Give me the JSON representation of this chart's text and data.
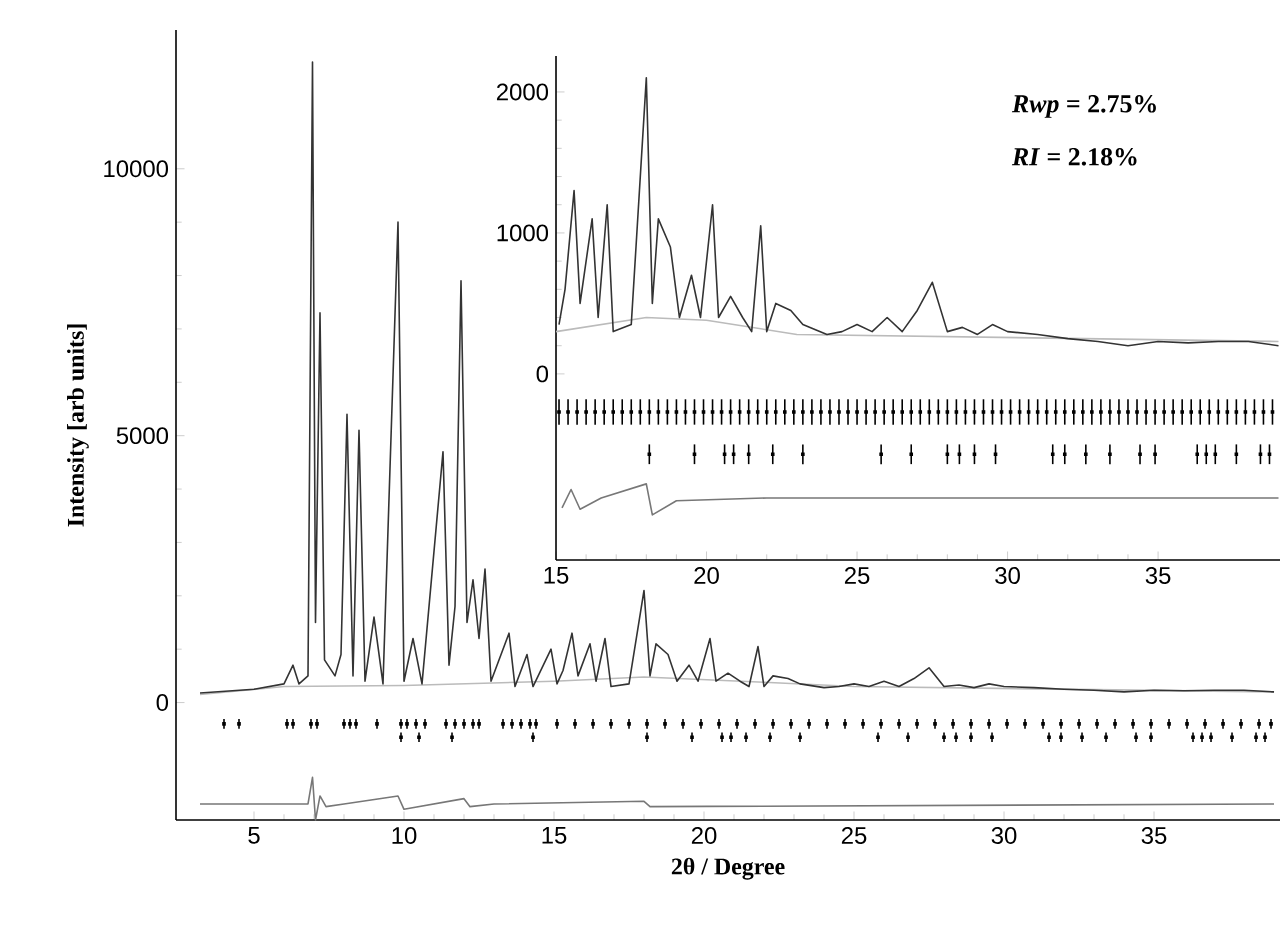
{
  "chart_data": [
    {
      "type": "line",
      "xlabel": "2θ / Degree",
      "ylabel": "Intensity [arb units]",
      "xlim": [
        2.4,
        39.2
      ],
      "ylim": [
        -2200,
        12600
      ],
      "xticks": [
        5,
        10,
        15,
        20,
        25,
        30,
        35
      ],
      "yticks": [
        0,
        5000,
        10000
      ],
      "series": [
        {
          "color": "#bbbbbb",
          "x": [
            3.2,
            6,
            10,
            15,
            18,
            22,
            25,
            39
          ],
          "values": [
            150,
            300,
            320,
            400,
            480,
            380,
            300,
            200
          ]
        },
        {
          "color": "#333333",
          "x": [
            3.2,
            5,
            6,
            6.3,
            6.5,
            6.8,
            6.95,
            7.05,
            7.2,
            7.35,
            7.7,
            7.9,
            8.1,
            8.3,
            8.5,
            8.7,
            9.0,
            9.3,
            9.8,
            10.0,
            10.3,
            10.6,
            11.3,
            11.5,
            11.7,
            11.9,
            12.1,
            12.3,
            12.5,
            12.7,
            12.9,
            13.5,
            13.7,
            14.1,
            14.3,
            14.9,
            15.1,
            15.3,
            15.6,
            15.8,
            16.2,
            16.4,
            16.7,
            16.9,
            17.5,
            18.0,
            18.2,
            18.4,
            18.8,
            19.1,
            19.5,
            19.8,
            20.2,
            20.4,
            20.8,
            21.2,
            21.5,
            21.8,
            22.0,
            22.3,
            22.8,
            23.2,
            24.0,
            24.5,
            25.0,
            25.5,
            26.0,
            26.5,
            27.0,
            27.5,
            28.0,
            28.5,
            29.0,
            29.5,
            30.0,
            31.0,
            32.0,
            33.0,
            34.0,
            35.0,
            36.0,
            37.0,
            38.0,
            39.0
          ],
          "values": [
            180,
            250,
            350,
            700,
            350,
            500,
            12000,
            1500,
            7300,
            800,
            500,
            900,
            5400,
            500,
            5100,
            400,
            1600,
            350,
            9000,
            400,
            1200,
            350,
            4700,
            700,
            1800,
            7900,
            1500,
            2300,
            1200,
            2500,
            400,
            1300,
            300,
            900,
            300,
            1000,
            350,
            600,
            1300,
            500,
            1100,
            400,
            1200,
            300,
            350,
            2100,
            500,
            1100,
            900,
            400,
            700,
            400,
            1200,
            400,
            550,
            400,
            300,
            1050,
            300,
            500,
            450,
            350,
            280,
            300,
            350,
            300,
            400,
            300,
            450,
            650,
            300,
            330,
            280,
            350,
            300,
            280,
            250,
            230,
            200,
            230,
            220,
            230,
            230,
            200
          ]
        },
        {
          "type": "scatter",
          "marker": "square",
          "color": "#000000",
          "x": [
            4.0,
            4.5,
            6.1,
            6.3,
            6.9,
            7.1,
            8.0,
            8.2,
            8.4,
            9.1,
            9.9,
            10.1,
            10.4,
            10.7,
            11.4,
            11.7,
            12.0,
            12.3,
            12.5,
            13.3,
            13.6,
            13.9,
            14.2,
            14.4,
            15.1,
            15.7,
            16.3,
            16.9,
            17.5,
            18.1,
            18.7,
            19.3,
            19.9,
            20.5,
            21.1,
            21.7,
            22.3,
            22.9,
            23.5,
            24.1,
            24.7,
            25.3,
            25.9,
            26.5,
            27.1,
            27.7,
            28.3,
            28.9,
            29.5,
            30.1,
            30.7,
            31.3,
            31.9,
            32.5,
            33.1,
            33.7,
            34.3,
            34.9,
            35.5,
            36.1,
            36.7,
            37.3,
            37.9,
            38.5,
            38.9
          ],
          "values": [
            -400,
            -400,
            -400,
            -400,
            -400,
            -400,
            -400,
            -400,
            -400,
            -400,
            -400,
            -400,
            -400,
            -400,
            -400,
            -400,
            -400,
            -400,
            -400,
            -400,
            -400,
            -400,
            -400,
            -400,
            -400,
            -400,
            -400,
            -400,
            -400,
            -400,
            -400,
            -400,
            -400,
            -400,
            -400,
            -400,
            -400,
            -400,
            -400,
            -400,
            -400,
            -400,
            -400,
            -400,
            -400,
            -400,
            -400,
            -400,
            -400,
            -400,
            -400,
            -400,
            -400,
            -400,
            -400,
            -400,
            -400,
            -400,
            -400,
            -400,
            -400,
            -400,
            -400,
            -400,
            -400
          ],
          "errors": [
            90,
            90,
            90,
            90,
            90,
            90,
            90,
            90,
            90,
            90,
            90,
            90,
            90,
            90,
            90,
            90,
            90,
            90,
            90,
            90,
            90,
            90,
            90,
            90,
            90,
            90,
            90,
            90,
            90,
            90,
            90,
            90,
            90,
            90,
            90,
            90,
            90,
            90,
            90,
            90,
            90,
            90,
            90,
            90,
            90,
            90,
            90,
            90,
            90,
            90,
            90,
            90,
            90,
            90,
            90,
            90,
            90,
            90,
            90,
            90,
            90,
            90,
            90,
            90,
            90
          ]
        },
        {
          "type": "scatter",
          "marker": "square",
          "color": "#000000",
          "x": [
            9.9,
            10.5,
            11.6,
            14.3,
            18.1,
            19.6,
            20.6,
            20.9,
            21.4,
            22.2,
            23.2,
            25.8,
            26.8,
            28.0,
            28.4,
            28.9,
            29.6,
            31.5,
            31.9,
            32.6,
            33.4,
            34.4,
            34.9,
            36.3,
            36.6,
            36.9,
            37.6,
            38.4,
            38.7
          ],
          "values": [
            -650,
            -650,
            -650,
            -650,
            -650,
            -650,
            -650,
            -650,
            -650,
            -650,
            -650,
            -650,
            -650,
            -650,
            -650,
            -650,
            -650,
            -650,
            -650,
            -650,
            -650,
            -650,
            -650,
            -650,
            -650,
            -650,
            -650,
            -650,
            -650
          ],
          "errors": [
            90,
            90,
            90,
            90,
            90,
            90,
            90,
            90,
            90,
            90,
            90,
            90,
            90,
            90,
            90,
            90,
            90,
            90,
            90,
            90,
            90,
            90,
            90,
            90,
            90,
            90,
            90,
            90,
            90
          ]
        },
        {
          "color": "#777777",
          "x": [
            3.2,
            6.8,
            6.95,
            7.05,
            7.2,
            7.4,
            8.0,
            9.8,
            10.0,
            12.0,
            12.2,
            13.0,
            18.0,
            18.2,
            39.0
          ],
          "values": [
            -1900,
            -1900,
            -1400,
            -2200,
            -1750,
            -1950,
            -1900,
            -1750,
            -2000,
            -1800,
            -1950,
            -1900,
            -1850,
            -1950,
            -1900
          ]
        }
      ]
    },
    {
      "type": "line",
      "annotations": [
        "*Rwp* = 2.75%",
        "*RI*    = 2.18%"
      ],
      "xlim": [
        15,
        39.05
      ],
      "ylim": [
        -1320,
        2255
      ],
      "xticks": [
        15,
        20,
        25,
        30,
        35
      ],
      "yticks": [
        0,
        1000,
        2000
      ],
      "series": [
        {
          "color": "#bbbbbb",
          "x": [
            15,
            18,
            20,
            23,
            39
          ],
          "values": [
            300,
            400,
            380,
            280,
            230
          ]
        },
        {
          "color": "#333333",
          "x": [
            15.1,
            15.3,
            15.6,
            15.8,
            16.2,
            16.4,
            16.7,
            16.9,
            17.5,
            18.0,
            18.2,
            18.4,
            18.8,
            19.1,
            19.5,
            19.8,
            20.2,
            20.4,
            20.8,
            21.2,
            21.5,
            21.8,
            22.0,
            22.3,
            22.8,
            23.2,
            24.0,
            24.5,
            25.0,
            25.5,
            26.0,
            26.5,
            27.0,
            27.5,
            28.0,
            28.5,
            29.0,
            29.5,
            30.0,
            31.0,
            32.0,
            33.0,
            34.0,
            35.0,
            36.0,
            37.0,
            38.0,
            39.0
          ],
          "values": [
            350,
            600,
            1300,
            500,
            1100,
            400,
            1200,
            300,
            350,
            2100,
            500,
            1100,
            900,
            400,
            700,
            400,
            1200,
            400,
            550,
            400,
            300,
            1050,
            300,
            500,
            450,
            350,
            280,
            300,
            350,
            300,
            400,
            300,
            450,
            650,
            300,
            330,
            280,
            350,
            300,
            280,
            250,
            230,
            200,
            230,
            220,
            230,
            230,
            200
          ]
        },
        {
          "type": "scatter",
          "marker": "square",
          "color": "#000000",
          "x": [
            15.1,
            15.4,
            15.7,
            16.0,
            16.3,
            16.6,
            16.9,
            17.2,
            17.5,
            17.8,
            18.1,
            18.4,
            18.7,
            19.0,
            19.3,
            19.6,
            19.9,
            20.2,
            20.5,
            20.8,
            21.1,
            21.4,
            21.7,
            22.0,
            22.3,
            22.6,
            22.9,
            23.2,
            23.5,
            23.8,
            24.1,
            24.4,
            24.7,
            25.0,
            25.3,
            25.6,
            25.9,
            26.2,
            26.5,
            26.8,
            27.1,
            27.4,
            27.7,
            28.0,
            28.3,
            28.6,
            28.9,
            29.2,
            29.5,
            29.8,
            30.1,
            30.4,
            30.7,
            31.0,
            31.3,
            31.6,
            31.9,
            32.2,
            32.5,
            32.8,
            33.1,
            33.4,
            33.7,
            34.0,
            34.3,
            34.6,
            34.9,
            35.2,
            35.5,
            35.8,
            36.1,
            36.4,
            36.7,
            37.0,
            37.3,
            37.6,
            37.9,
            38.2,
            38.5,
            38.8
          ],
          "values": [
            -270,
            -270,
            -270,
            -270,
            -270,
            -270,
            -270,
            -270,
            -270,
            -270,
            -270,
            -270,
            -270,
            -270,
            -270,
            -270,
            -270,
            -270,
            -270,
            -270,
            -270,
            -270,
            -270,
            -270,
            -270,
            -270,
            -270,
            -270,
            -270,
            -270,
            -270,
            -270,
            -270,
            -270,
            -270,
            -270,
            -270,
            -270,
            -270,
            -270,
            -270,
            -270,
            -270,
            -270,
            -270,
            -270,
            -270,
            -270,
            -270,
            -270,
            -270,
            -270,
            -270,
            -270,
            -270,
            -270,
            -270,
            -270,
            -270,
            -270,
            -270,
            -270,
            -270,
            -270,
            -270,
            -270,
            -270,
            -270,
            -270,
            -270,
            -270,
            -270,
            -270,
            -270,
            -270,
            -270,
            -270,
            -270,
            -270,
            -270
          ],
          "errors": [
            90,
            90,
            90,
            90,
            90,
            90,
            90,
            90,
            90,
            90,
            90,
            90,
            90,
            90,
            90,
            90,
            90,
            90,
            90,
            90,
            90,
            90,
            90,
            90,
            90,
            90,
            90,
            90,
            90,
            90,
            90,
            90,
            90,
            90,
            90,
            90,
            90,
            90,
            90,
            90,
            90,
            90,
            90,
            90,
            90,
            90,
            90,
            90,
            90,
            90,
            90,
            90,
            90,
            90,
            90,
            90,
            90,
            90,
            90,
            90,
            90,
            90,
            90,
            90,
            90,
            90,
            90,
            90,
            90,
            90,
            90,
            90,
            90,
            90,
            90,
            90,
            90,
            90,
            90,
            90
          ]
        },
        {
          "type": "scatter",
          "marker": "square",
          "color": "#000000",
          "x": [
            18.1,
            19.6,
            20.6,
            20.9,
            21.4,
            22.2,
            23.2,
            25.8,
            26.8,
            28.0,
            28.4,
            28.9,
            29.6,
            31.5,
            31.9,
            32.6,
            33.4,
            34.4,
            34.9,
            36.3,
            36.6,
            36.9,
            37.6,
            38.4,
            38.7
          ],
          "values": [
            -570,
            -570,
            -570,
            -570,
            -570,
            -570,
            -570,
            -570,
            -570,
            -570,
            -570,
            -570,
            -570,
            -570,
            -570,
            -570,
            -570,
            -570,
            -570,
            -570,
            -570,
            -570,
            -570,
            -570,
            -570
          ],
          "errors": [
            70,
            70,
            70,
            70,
            70,
            70,
            70,
            70,
            70,
            70,
            70,
            70,
            70,
            70,
            70,
            70,
            70,
            70,
            70,
            70,
            70,
            70,
            70,
            70,
            70
          ]
        },
        {
          "color": "#777777",
          "x": [
            15.2,
            15.5,
            15.8,
            16.5,
            18.0,
            18.2,
            19.0,
            22.0,
            30.0,
            39.0
          ],
          "values": [
            -950,
            -820,
            -960,
            -880,
            -780,
            -1000,
            -900,
            -880,
            -880,
            -880
          ]
        }
      ]
    }
  ]
}
